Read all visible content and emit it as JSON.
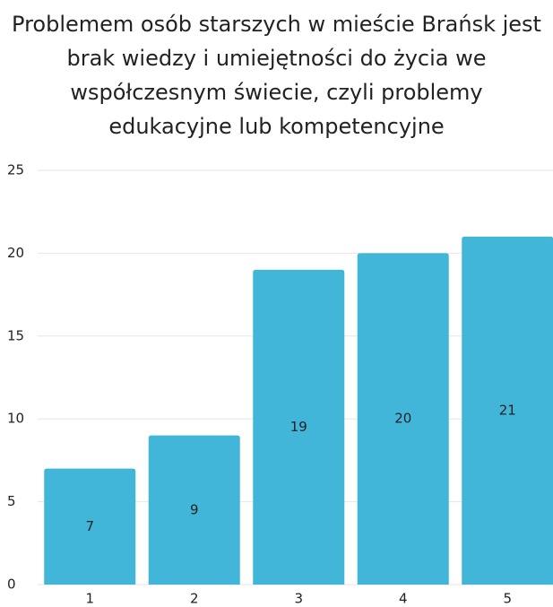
{
  "chart_data": {
    "type": "bar",
    "title": "Problemem osób starszych w mieście Brańsk jest brak wiedzy i umiejętności do życia we współczesnym świecie, czyli problemy edukacyjne lub kompetencyjne",
    "categories": [
      "1",
      "2",
      "3",
      "4",
      "5"
    ],
    "values": [
      7,
      9,
      19,
      20,
      21
    ],
    "color": "#41b6d8",
    "ylim": [
      0,
      25
    ],
    "yticks": [
      0,
      5,
      10,
      15,
      20,
      25
    ],
    "grid": true
  }
}
